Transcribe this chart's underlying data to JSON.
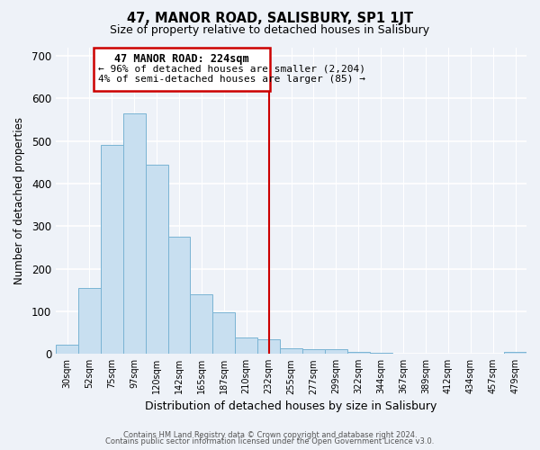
{
  "title": "47, MANOR ROAD, SALISBURY, SP1 1JT",
  "subtitle": "Size of property relative to detached houses in Salisbury",
  "xlabel": "Distribution of detached houses by size in Salisbury",
  "ylabel": "Number of detached properties",
  "categories": [
    "30sqm",
    "52sqm",
    "75sqm",
    "97sqm",
    "120sqm",
    "142sqm",
    "165sqm",
    "187sqm",
    "210sqm",
    "232sqm",
    "255sqm",
    "277sqm",
    "299sqm",
    "322sqm",
    "344sqm",
    "367sqm",
    "389sqm",
    "412sqm",
    "434sqm",
    "457sqm",
    "479sqm"
  ],
  "values": [
    22,
    155,
    490,
    565,
    445,
    275,
    140,
    97,
    38,
    35,
    14,
    10,
    10,
    5,
    3,
    1,
    0,
    0,
    0,
    0,
    5
  ],
  "bar_color": "#c8dff0",
  "bar_edge_color": "#7ab4d4",
  "background_color": "#eef2f8",
  "grid_color": "#ffffff",
  "property_line_x": 9.0,
  "property_line_color": "#cc0000",
  "annotation_title": "47 MANOR ROAD: 224sqm",
  "annotation_line1": "← 96% of detached houses are smaller (2,204)",
  "annotation_line2": "4% of semi-detached houses are larger (85) →",
  "annotation_box_edge": "#cc0000",
  "ylim": [
    0,
    720
  ],
  "yticks": [
    0,
    100,
    200,
    300,
    400,
    500,
    600,
    700
  ],
  "footer1": "Contains HM Land Registry data © Crown copyright and database right 2024.",
  "footer2": "Contains public sector information licensed under the Open Government Licence v3.0."
}
